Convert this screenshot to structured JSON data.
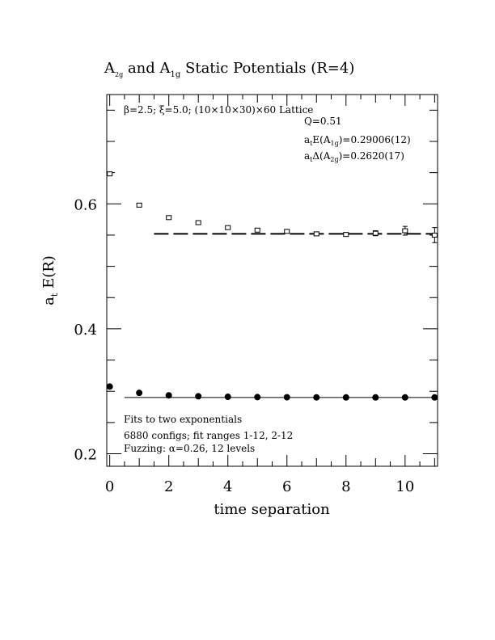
{
  "title": {
    "main": "A",
    "sub1": "2g",
    "mid": " and A",
    "sub2": "1g",
    "rest": " Static Potentials (R=4)"
  },
  "annotations": {
    "lattice": "β=2.5; ξ=5.0; (10×10×30)×60 Lattice",
    "q": "Q=0.51",
    "energy_prefix": "a",
    "energy_prefix_sub": "t",
    "energy_mid": "E(A",
    "energy_mid_sub": "1g",
    "energy_value": ")=0.29006(12)",
    "gap_prefix": "a",
    "gap_prefix_sub": "t",
    "gap_mid": "Δ(A",
    "gap_mid_sub": "2g",
    "gap_value": ")=0.2620(17)",
    "fits_line1": "Fits to two exponentials",
    "fits_line2": "6880 configs; fit ranges 1-12, 2-12",
    "fits_line3": "Fuzzing: α=0.26, 12 levels"
  },
  "chart_data": {
    "type": "scatter",
    "xlabel": "time separation",
    "ylabel_main": "a",
    "ylabel_sub": "t",
    "ylabel_rest": " E(R)",
    "xlim": [
      -0.1,
      11.1
    ],
    "ylim": [
      0.18,
      0.775
    ],
    "x_ticks": [
      0,
      2,
      4,
      6,
      8,
      10
    ],
    "x_tick_labels": [
      "0",
      "2",
      "4",
      "6",
      "8",
      "10"
    ],
    "y_ticks": [
      0.2,
      0.4,
      0.6
    ],
    "y_tick_labels": [
      "0.2",
      "0.4",
      "0.6"
    ],
    "series": [
      {
        "marker": "open-square",
        "x": [
          0,
          1,
          2,
          3,
          4,
          5,
          6,
          7,
          8,
          9,
          10,
          11
        ],
        "y": [
          0.648,
          0.598,
          0.578,
          0.57,
          0.562,
          0.558,
          0.556,
          0.552,
          0.551,
          0.553,
          0.557,
          0.55
        ],
        "err": [
          0.001,
          0.001,
          0.001,
          0.001,
          0.001,
          0.002,
          0.002,
          0.002,
          0.003,
          0.004,
          0.007,
          0.012
        ]
      },
      {
        "marker": "filled-circle",
        "x": [
          0,
          1,
          2,
          3,
          4,
          5,
          6,
          7,
          8,
          9,
          10,
          11
        ],
        "y": [
          0.3075,
          0.2975,
          0.2935,
          0.292,
          0.2912,
          0.2907,
          0.2905,
          0.2903,
          0.2902,
          0.2902,
          0.2902,
          0.2902
        ],
        "err": [
          0,
          0,
          0,
          0,
          0,
          0,
          0,
          0,
          0,
          0,
          0,
          0
        ]
      }
    ],
    "fit_lines": [
      {
        "style": "dashed",
        "y": 0.5521,
        "x_range": [
          1.5,
          11.1
        ]
      },
      {
        "style": "solid",
        "y": 0.29006,
        "x_range": [
          0.5,
          11.1
        ]
      }
    ]
  }
}
